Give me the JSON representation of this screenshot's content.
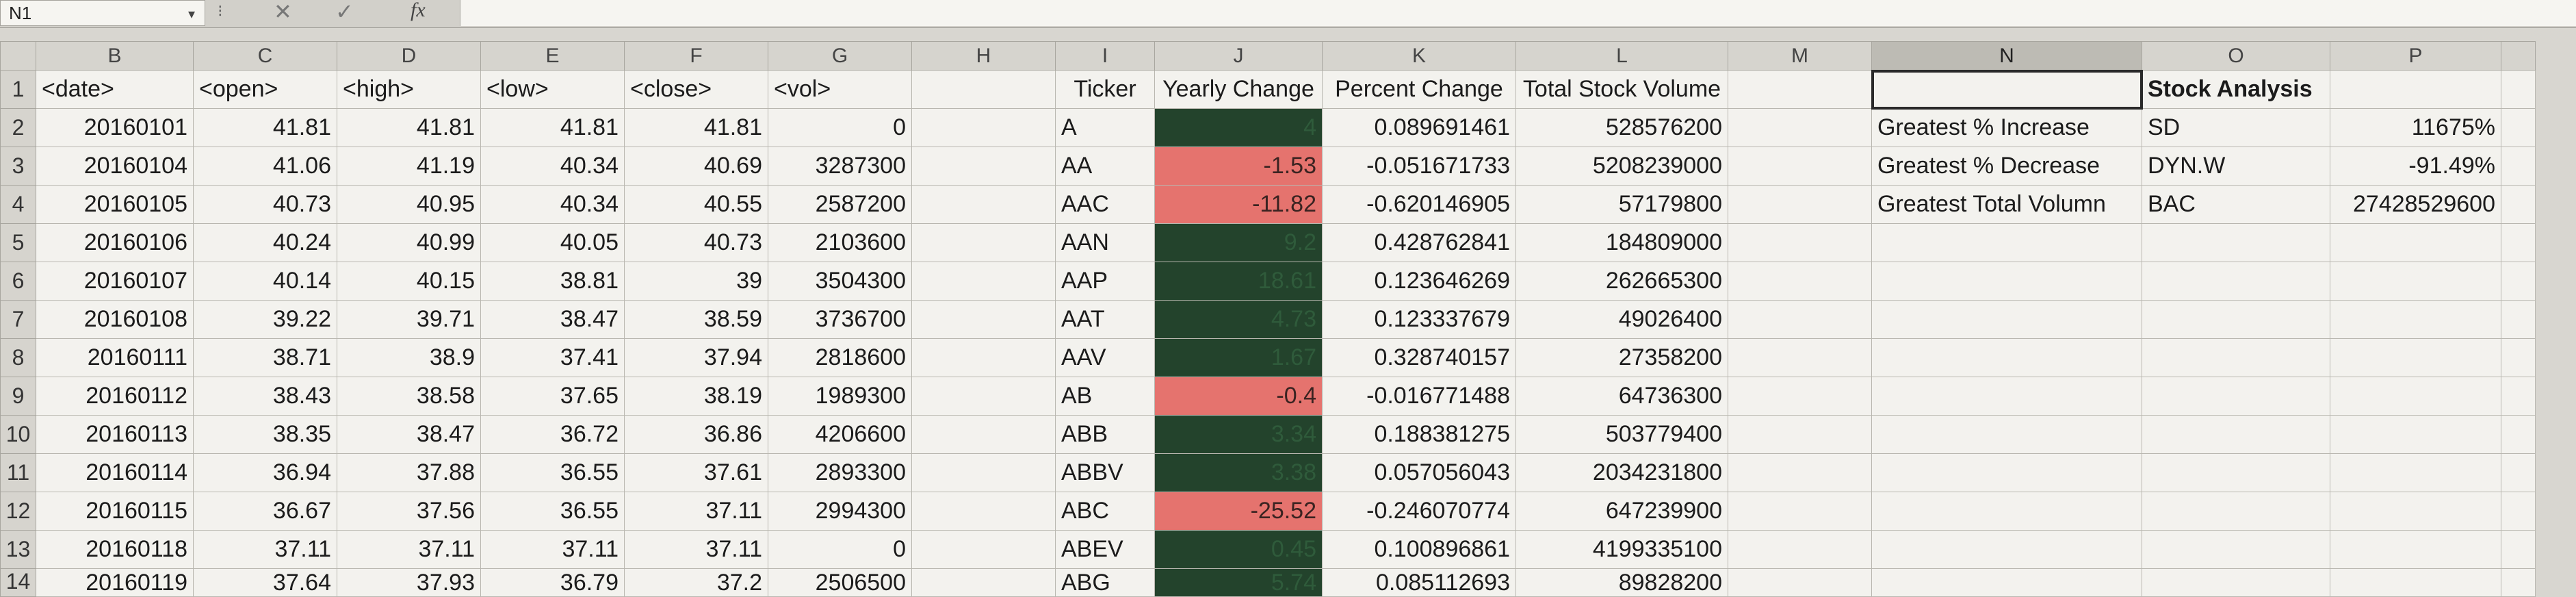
{
  "formula_bar": {
    "name_box": "N1",
    "separator": "⁝",
    "cancel_icon": "✕",
    "enter_icon": "✓",
    "fx_label": "fx",
    "content": ""
  },
  "columns": [
    "",
    "B",
    "C",
    "D",
    "E",
    "F",
    "G",
    "H",
    "I",
    "J",
    "K",
    "L",
    "M",
    "N",
    "O",
    "P",
    ""
  ],
  "colors": {
    "positive_fill": "#23432c",
    "negative_fill": "#e5736e",
    "header_fill": "#d6d4ce"
  },
  "rows": [
    {
      "n": "1",
      "b": "<date>",
      "c": "<open>",
      "d": "<high>",
      "e": "<low>",
      "f": "<close>",
      "g": "<vol>",
      "h": "",
      "i": "Ticker",
      "j": "Yearly Change",
      "k": "Percent Change",
      "l": "Total Stock Volume",
      "m": "",
      "n2": "",
      "o": "Stock Analysis",
      "p": ""
    },
    {
      "n": "2",
      "b": "20160101",
      "c": "41.81",
      "d": "41.81",
      "e": "41.81",
      "f": "41.81",
      "g": "0",
      "h": "",
      "i": "A",
      "j": "4",
      "k": "0.089691461",
      "l": "528576200",
      "m": "",
      "n2": "Greatest % Increase",
      "o": "SD",
      "p": "11675%"
    },
    {
      "n": "3",
      "b": "20160104",
      "c": "41.06",
      "d": "41.19",
      "e": "40.34",
      "f": "40.69",
      "g": "3287300",
      "h": "",
      "i": "AA",
      "j": "-1.53",
      "k": "-0.051671733",
      "l": "5208239000",
      "m": "",
      "n2": "Greatest % Decrease",
      "o": "DYN.W",
      "p": "-91.49%"
    },
    {
      "n": "4",
      "b": "20160105",
      "c": "40.73",
      "d": "40.95",
      "e": "40.34",
      "f": "40.55",
      "g": "2587200",
      "h": "",
      "i": "AAC",
      "j": "-11.82",
      "k": "-0.620146905",
      "l": "57179800",
      "m": "",
      "n2": "Greatest Total Volumn",
      "o": "BAC",
      "p": "27428529600"
    },
    {
      "n": "5",
      "b": "20160106",
      "c": "40.24",
      "d": "40.99",
      "e": "40.05",
      "f": "40.73",
      "g": "2103600",
      "h": "",
      "i": "AAN",
      "j": "9.2",
      "k": "0.428762841",
      "l": "184809000",
      "m": "",
      "n2": "",
      "o": "",
      "p": ""
    },
    {
      "n": "6",
      "b": "20160107",
      "c": "40.14",
      "d": "40.15",
      "e": "38.81",
      "f": "39",
      "g": "3504300",
      "h": "",
      "i": "AAP",
      "j": "18.61",
      "k": "0.123646269",
      "l": "262665300",
      "m": "",
      "n2": "",
      "o": "",
      "p": ""
    },
    {
      "n": "7",
      "b": "20160108",
      "c": "39.22",
      "d": "39.71",
      "e": "38.47",
      "f": "38.59",
      "g": "3736700",
      "h": "",
      "i": "AAT",
      "j": "4.73",
      "k": "0.123337679",
      "l": "49026400",
      "m": "",
      "n2": "",
      "o": "",
      "p": ""
    },
    {
      "n": "8",
      "b": "20160111",
      "c": "38.71",
      "d": "38.9",
      "e": "37.41",
      "f": "37.94",
      "g": "2818600",
      "h": "",
      "i": "AAV",
      "j": "1.67",
      "k": "0.328740157",
      "l": "27358200",
      "m": "",
      "n2": "",
      "o": "",
      "p": ""
    },
    {
      "n": "9",
      "b": "20160112",
      "c": "38.43",
      "d": "38.58",
      "e": "37.65",
      "f": "38.19",
      "g": "1989300",
      "h": "",
      "i": "AB",
      "j": "-0.4",
      "k": "-0.016771488",
      "l": "64736300",
      "m": "",
      "n2": "",
      "o": "",
      "p": ""
    },
    {
      "n": "10",
      "b": "20160113",
      "c": "38.35",
      "d": "38.47",
      "e": "36.72",
      "f": "36.86",
      "g": "4206600",
      "h": "",
      "i": "ABB",
      "j": "3.34",
      "k": "0.188381275",
      "l": "503779400",
      "m": "",
      "n2": "",
      "o": "",
      "p": ""
    },
    {
      "n": "11",
      "b": "20160114",
      "c": "36.94",
      "d": "37.88",
      "e": "36.55",
      "f": "37.61",
      "g": "2893300",
      "h": "",
      "i": "ABBV",
      "j": "3.38",
      "k": "0.057056043",
      "l": "2034231800",
      "m": "",
      "n2": "",
      "o": "",
      "p": ""
    },
    {
      "n": "12",
      "b": "20160115",
      "c": "36.67",
      "d": "37.56",
      "e": "36.55",
      "f": "37.11",
      "g": "2994300",
      "h": "",
      "i": "ABC",
      "j": "-25.52",
      "k": "-0.246070774",
      "l": "647239900",
      "m": "",
      "n2": "",
      "o": "",
      "p": ""
    },
    {
      "n": "13",
      "b": "20160118",
      "c": "37.11",
      "d": "37.11",
      "e": "37.11",
      "f": "37.11",
      "g": "0",
      "h": "",
      "i": "ABEV",
      "j": "0.45",
      "k": "0.100896861",
      "l": "4199335100",
      "m": "",
      "n2": "",
      "o": "",
      "p": ""
    },
    {
      "n": "14",
      "b": "20160119",
      "c": "37.64",
      "d": "37.93",
      "e": "36.79",
      "f": "37.2",
      "g": "2506500",
      "h": "",
      "i": "ABG",
      "j": "5.74",
      "k": "0.085112693",
      "l": "89828200",
      "m": "",
      "n2": "",
      "o": "",
      "p": ""
    }
  ]
}
